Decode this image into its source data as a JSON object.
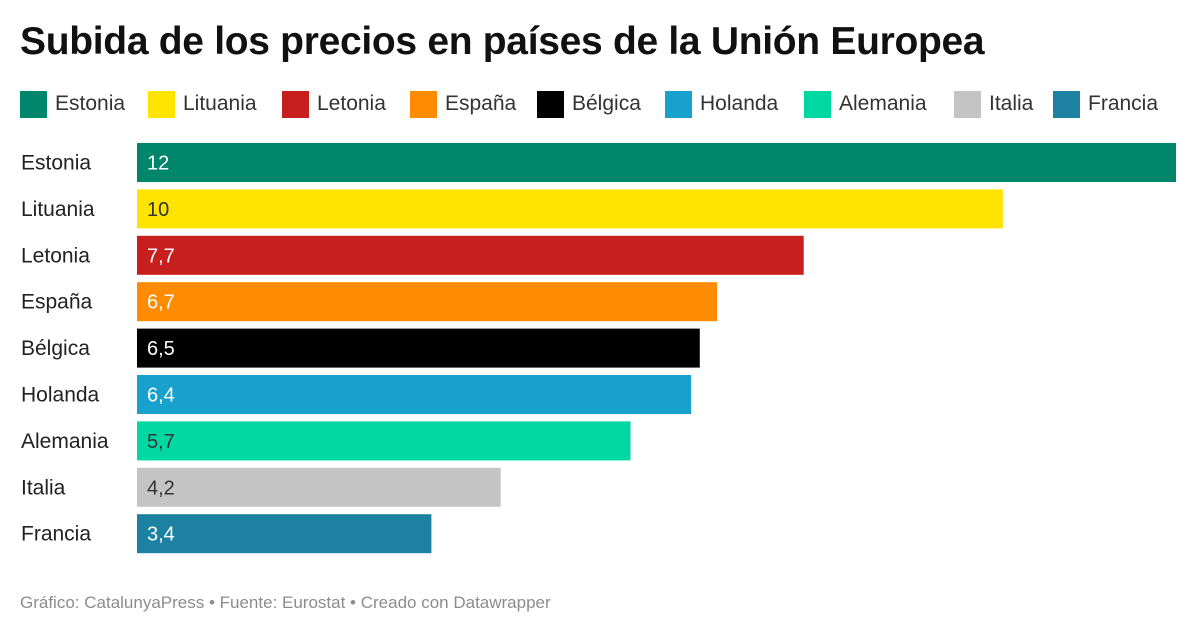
{
  "title": "Subida de los precios en países de la Unión Europea",
  "footer": "Gráfico: CatalunyaPress • Fuente: Eurostat • Creado con Datawrapper",
  "chart_data": {
    "type": "bar",
    "orientation": "horizontal",
    "title": "Subida de los precios en países de la Unión Europea",
    "categories": [
      "Estonia",
      "Lituania",
      "Letonia",
      "España",
      "Bélgica",
      "Holanda",
      "Alemania",
      "Italia",
      "Francia"
    ],
    "values": [
      12,
      10,
      7.7,
      6.7,
      6.5,
      6.4,
      5.7,
      4.2,
      3.4
    ],
    "value_labels": [
      "12",
      "10",
      "7,7",
      "6,7",
      "6,5",
      "6,4",
      "5,7",
      "4,2",
      "3,4"
    ],
    "colors": [
      "#00866b",
      "#ffe400",
      "#c71e1e",
      "#ff8c00",
      "#000000",
      "#18a1cd",
      "#00d8a3",
      "#c4c4c4",
      "#1d81a2"
    ],
    "label_colors": [
      "#ffffff",
      "#333333",
      "#ffffff",
      "#ffffff",
      "#ffffff",
      "#ffffff",
      "#333333",
      "#333333",
      "#ffffff"
    ],
    "xlim": [
      0,
      12
    ],
    "grid": false,
    "legend_placement": "top"
  }
}
